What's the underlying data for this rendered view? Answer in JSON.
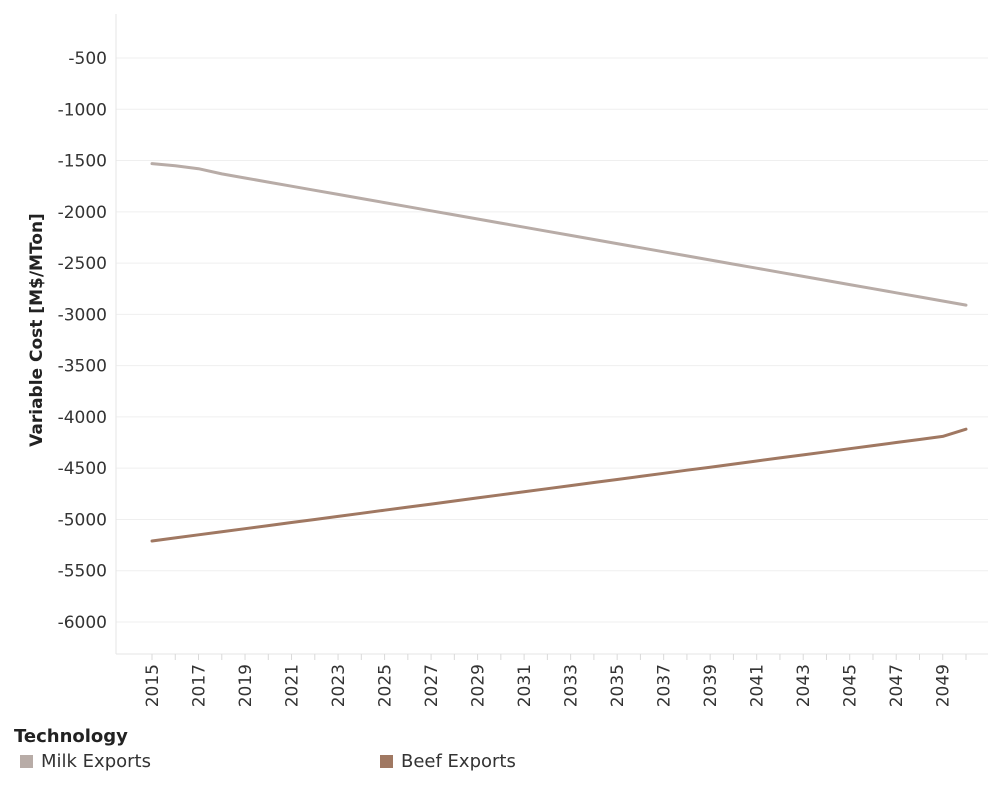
{
  "chart_data": {
    "type": "line",
    "title": "",
    "xlabel": "",
    "ylabel": "Variable Cost [M$/MTon]",
    "x": [
      2015,
      2016,
      2017,
      2018,
      2019,
      2020,
      2021,
      2022,
      2023,
      2024,
      2025,
      2026,
      2027,
      2028,
      2029,
      2030,
      2031,
      2032,
      2033,
      2034,
      2035,
      2036,
      2037,
      2038,
      2039,
      2040,
      2041,
      2042,
      2043,
      2044,
      2045,
      2046,
      2047,
      2048,
      2049,
      2050
    ],
    "x_ticks": [
      "2015",
      "2017",
      "2019",
      "2021",
      "2023",
      "2025",
      "2027",
      "2029",
      "2031",
      "2033",
      "2035",
      "2037",
      "2039",
      "2041",
      "2043",
      "2045",
      "2047",
      "2049"
    ],
    "ylim": [
      -6300,
      -50
    ],
    "y_ticks": [
      -500,
      -1000,
      -1500,
      -2000,
      -2500,
      -3000,
      -3500,
      -4000,
      -4500,
      -5000,
      -5500,
      -6000
    ],
    "grid": true,
    "legend": {
      "title": "Technology",
      "position": "bottom"
    },
    "series": [
      {
        "name": "Milk Exports",
        "color": "#b8aca7",
        "values": [
          -1530,
          -1550,
          -1580,
          -1630,
          -1670,
          -1710,
          -1750,
          -1790,
          -1830,
          -1870,
          -1910,
          -1950,
          -1990,
          -2030,
          -2070,
          -2110,
          -2150,
          -2190,
          -2230,
          -2270,
          -2310,
          -2350,
          -2390,
          -2430,
          -2470,
          -2510,
          -2550,
          -2590,
          -2630,
          -2670,
          -2710,
          -2750,
          -2790,
          -2830,
          -2870,
          -2910
        ]
      },
      {
        "name": "Beef Exports",
        "color": "#a07862",
        "values": [
          -5210,
          -5180,
          -5150,
          -5120,
          -5090,
          -5060,
          -5030,
          -5000,
          -4970,
          -4940,
          -4910,
          -4880,
          -4850,
          -4820,
          -4790,
          -4760,
          -4730,
          -4700,
          -4670,
          -4640,
          -4610,
          -4580,
          -4550,
          -4520,
          -4490,
          -4460,
          -4430,
          -4400,
          -4370,
          -4340,
          -4310,
          -4280,
          -4250,
          -4220,
          -4190,
          -4120
        ]
      }
    ]
  }
}
